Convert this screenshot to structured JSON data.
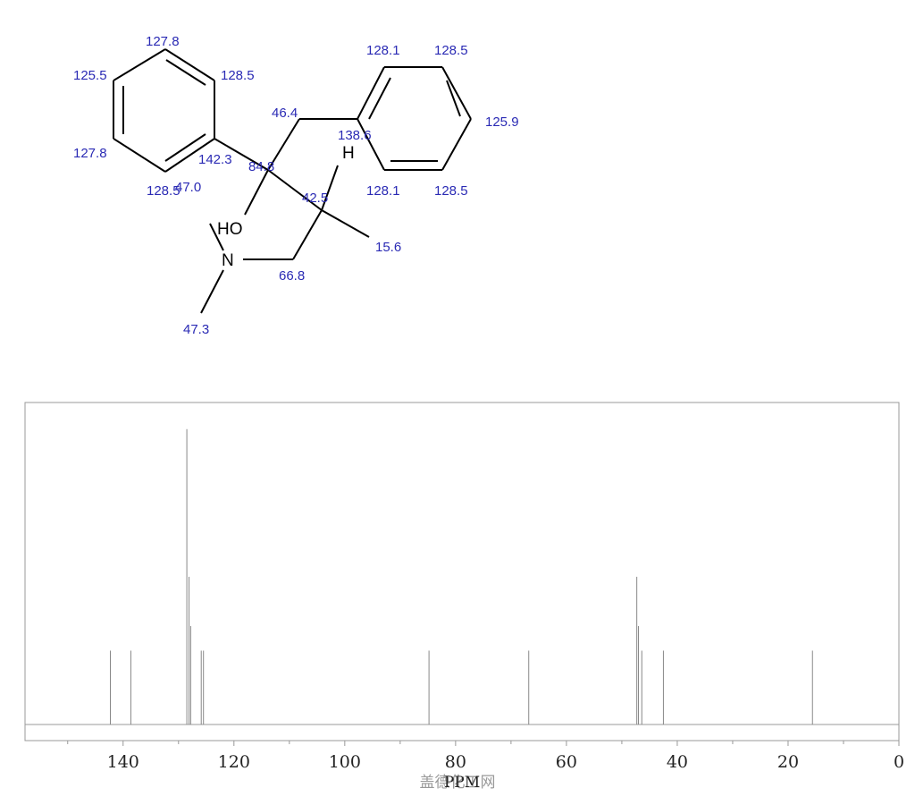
{
  "structure": {
    "atoms": [
      "HO",
      "N",
      "H"
    ],
    "shifts": [
      "127.8",
      "128.5",
      "125.5",
      "127.8",
      "142.3",
      "128.5",
      "47.0",
      "84.8",
      "46.4",
      "138.6",
      "128.1",
      "128.5",
      "125.9",
      "128.1",
      "128.5",
      "42.5",
      "15.6",
      "66.8",
      "47.3"
    ]
  },
  "chart_data": {
    "type": "spectrum",
    "xlabel": "PPM",
    "watermark": "盖德化工网",
    "x": [
      142.3,
      138.6,
      128.5,
      128.1,
      127.8,
      125.9,
      125.5,
      84.8,
      66.8,
      47.3,
      47.0,
      46.4,
      42.5,
      15.6
    ],
    "values": [
      24,
      24,
      96,
      48,
      32,
      24,
      24,
      24,
      24,
      48,
      32,
      24,
      24,
      24
    ],
    "color": "#888888",
    "xlim": [
      157.7,
      0
    ],
    "ylim": [
      0,
      100
    ],
    "xticks": [
      0,
      20,
      40,
      60,
      80,
      100,
      120,
      140
    ],
    "xminorticks": [
      10,
      30,
      50,
      70,
      90,
      110,
      130,
      150
    ]
  }
}
